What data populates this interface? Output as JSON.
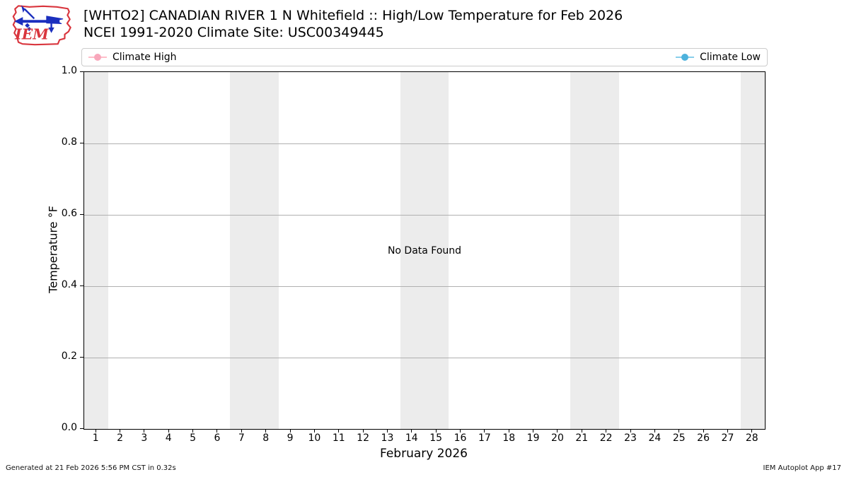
{
  "header": {
    "title": "[WHTO2] CANADIAN RIVER 1 N Whitefield :: High/Low Temperature for Feb 2026",
    "subtitle": "NCEI 1991-2020 Climate Site: USC00349445",
    "logo_text": "IEM"
  },
  "legend": {
    "items": [
      {
        "label": "Climate High",
        "line_color": "#ffbdc9",
        "dot_color": "#f8a7bb"
      },
      {
        "label": "Climate Low",
        "line_color": "#87ceeb",
        "dot_color": "#4db2dc"
      }
    ]
  },
  "chart_data": {
    "type": "line",
    "title": "[WHTO2] CANADIAN RIVER 1 N Whitefield :: High/Low Temperature for Feb 2026",
    "subtitle": "NCEI 1991-2020 Climate Site: USC00349445",
    "xlabel": "February 2026",
    "ylabel": "Temperature °F",
    "xlim": [
      0.5,
      28.5
    ],
    "ylim": [
      0.0,
      1.0
    ],
    "x_ticks": [
      "1",
      "2",
      "3",
      "4",
      "5",
      "6",
      "7",
      "8",
      "9",
      "10",
      "11",
      "12",
      "13",
      "14",
      "15",
      "16",
      "17",
      "18",
      "19",
      "20",
      "21",
      "22",
      "23",
      "24",
      "25",
      "26",
      "27",
      "28"
    ],
    "y_ticks": [
      {
        "value": 0.0,
        "label": "0.0"
      },
      {
        "value": 0.2,
        "label": "0.2"
      },
      {
        "value": 0.4,
        "label": "0.4"
      },
      {
        "value": 0.6,
        "label": "0.6"
      },
      {
        "value": 0.8,
        "label": "0.8"
      },
      {
        "value": 1.0,
        "label": "1.0"
      }
    ],
    "grid_y_values": [
      0.2,
      0.4,
      0.6,
      0.8
    ],
    "grid": "horizontal",
    "grid_color": "#b0b0b0",
    "weekend_bands": [
      [
        0.5,
        1.5
      ],
      [
        6.5,
        8.5
      ],
      [
        13.5,
        15.5
      ],
      [
        20.5,
        22.5
      ],
      [
        27.5,
        28.5
      ]
    ],
    "band_color": "#ececec",
    "series": [
      {
        "name": "Climate High",
        "color": "#ffbdc9",
        "x": [],
        "y": []
      },
      {
        "name": "Climate Low",
        "color": "#87ceeb",
        "x": [],
        "y": []
      }
    ],
    "no_data_text": "No Data Found",
    "legend_position": "top-expanded"
  },
  "footer": {
    "generated": "Generated at 21 Feb 2026 5:56 PM CST in 0.32s",
    "app": "IEM Autoplot App #17"
  }
}
